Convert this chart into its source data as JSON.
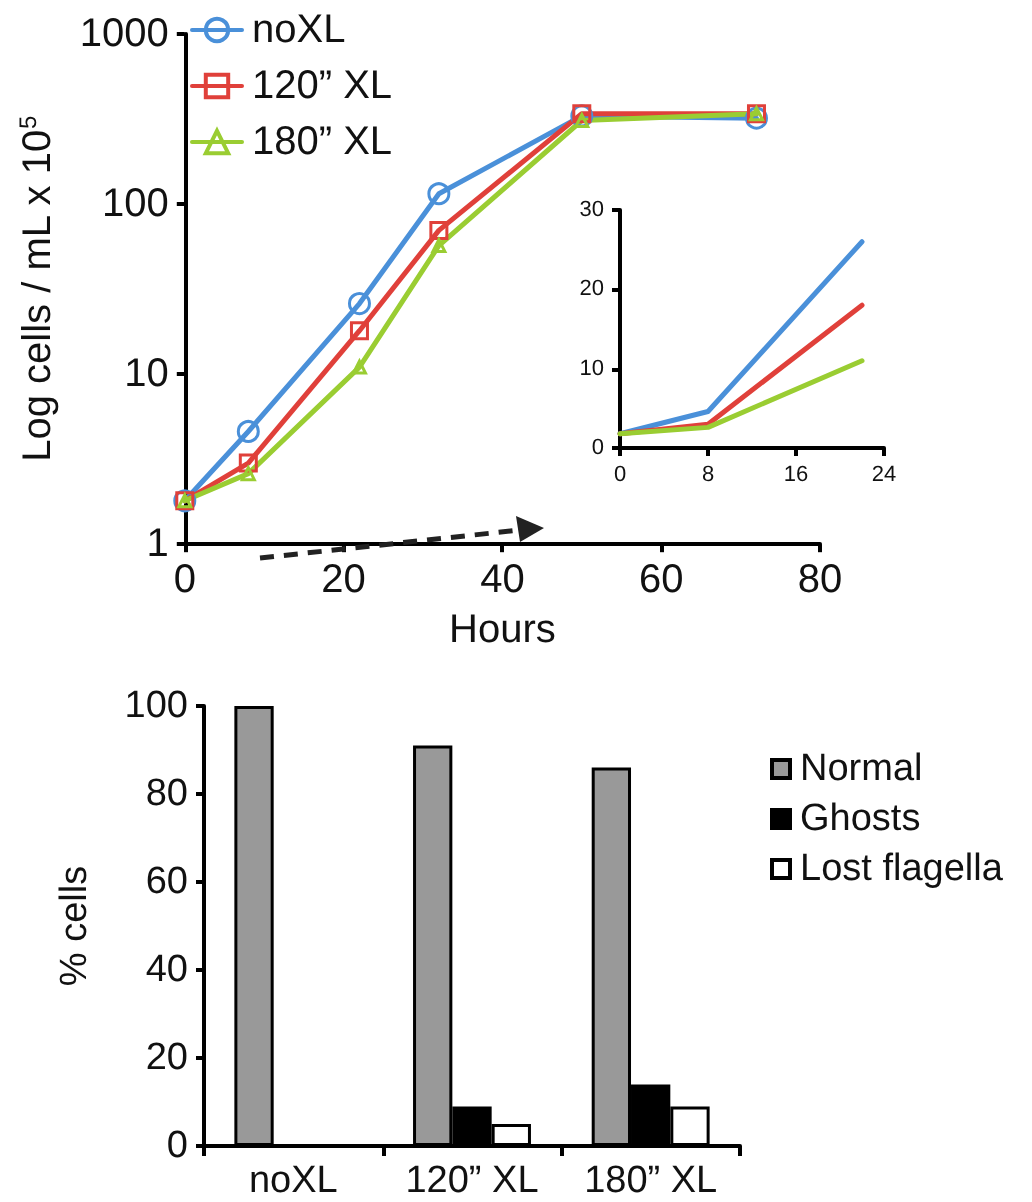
{
  "chart_data": [
    {
      "type": "line",
      "xlabel": "Hours",
      "ylabel": "Log cells / mL x 10$^{5}$",
      "x": [
        0,
        8,
        22,
        32,
        50,
        72
      ],
      "log": "y",
      "xlim": [
        0,
        80
      ],
      "xticks": [
        0,
        20,
        40,
        60,
        80
      ],
      "ylim": [
        1,
        1000
      ],
      "yticks": [
        1,
        10,
        100,
        1000
      ],
      "grid": false,
      "legend": "top left",
      "series": [
        {
          "name": "noXL",
          "color": "#4a90d9",
          "marker": "circle",
          "values": [
            1.8,
            4.6,
            26,
            115,
            330,
            320
          ]
        },
        {
          "name": "120” XL",
          "color": "#e0403a",
          "marker": "square",
          "values": [
            1.8,
            3.0,
            18,
            70,
            340,
            340
          ]
        },
        {
          "name": "180” XL",
          "color": "#9acd32",
          "marker": "triangle",
          "values": [
            1.8,
            2.6,
            11,
            57,
            310,
            340
          ]
        }
      ]
    },
    {
      "type": "line",
      "x": [
        0,
        8,
        22
      ],
      "xlim": [
        0,
        24
      ],
      "xticks": [
        0,
        8,
        16,
        24
      ],
      "ylim": [
        0,
        30
      ],
      "yticks": [
        0,
        10,
        20,
        30
      ],
      "grid": false,
      "legend": false,
      "marker": "none",
      "series": [
        {
          "color": "#4a90d9",
          "values": [
            1.8,
            4.6,
            26
          ]
        },
        {
          "color": "#e0403a",
          "values": [
            1.8,
            3.0,
            18
          ]
        },
        {
          "color": "#9acd32",
          "values": [
            1.8,
            2.6,
            11
          ]
        }
      ]
    },
    {
      "type": "bar",
      "ylabel": "% cells",
      "categories": [
        "noXL",
        "120” XL",
        "180” XL"
      ],
      "ylim": [
        0,
        100
      ],
      "yticks": [
        0,
        20,
        40,
        60,
        80,
        100
      ],
      "grid": false,
      "legend": "right",
      "series": [
        {
          "name": "Normal",
          "color": "#999999",
          "values": [
            100,
            91,
            86
          ]
        },
        {
          "name": "Ghosts",
          "color": "#000000",
          "values": [
            0,
            9,
            14
          ]
        },
        {
          "name": "Lost flagella",
          "color": "#ffffff",
          "values": [
            0,
            5,
            9
          ]
        }
      ]
    }
  ]
}
